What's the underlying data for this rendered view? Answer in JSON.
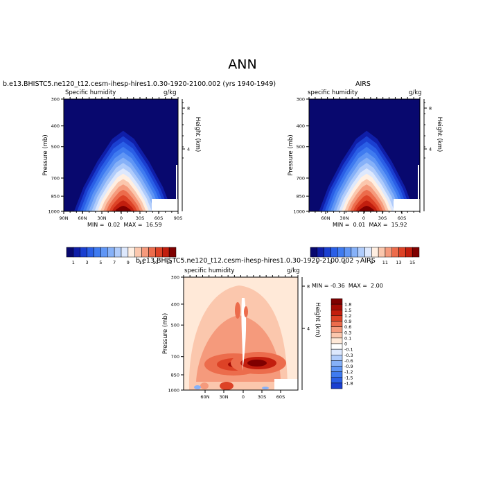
{
  "figure": {
    "title": "ANN"
  },
  "panels": [
    {
      "title": "b.e13.BHISTC5.ne120_t12.cesm-ihesp-hires1.0.30-1920-2100.002 (yrs 1940-1949)",
      "variable": "Specific humidity",
      "units": "g/kg",
      "minmax": "MIN =  0.02  MAX =  16.59"
    },
    {
      "title": "AIRS",
      "variable": "specific humidity",
      "units": "g/kg",
      "minmax": "MIN =  0.01  MAX =  15.92"
    },
    {
      "title": "b.e13.BHISTC5.ne120_t12.cesm-ihesp-hires1.0.30-1920-2100.002 - AIRS",
      "variable": "specific humidity",
      "units": "g/kg",
      "minmax": "MIN = -0.36  MAX =  2.00"
    }
  ],
  "colors": {
    "seq": [
      "#08086e",
      "#0f1ea8",
      "#1a3fd0",
      "#2a5fe6",
      "#3f7bf0",
      "#6096f5",
      "#86b1f8",
      "#b0ccfb",
      "#dde8fd",
      "#ffefe2",
      "#fbc7ad",
      "#f59a7c",
      "#ec6c4c",
      "#dd4226",
      "#c21e0e",
      "#7f0000"
    ],
    "div": [
      "#08086e",
      "#0f1ea8",
      "#1a3fd0",
      "#2a5fe6",
      "#3f7bf0",
      "#6096f5",
      "#86b1f8",
      "#b0ccfb",
      "#dde8fd",
      "#ffffff",
      "#ffe9d8",
      "#fbc7ad",
      "#f59a7c",
      "#ec6c4c",
      "#dd4226",
      "#c21e0e",
      "#a40a03",
      "#7f0000"
    ]
  },
  "chart_data": [
    {
      "type": "heatmap",
      "title": "b.e13.BHISTC5.ne120_t12.cesm-ihesp-hires1.0.30-1920-2100.002 (yrs 1940-1949)",
      "xlabel": "",
      "ylabel": "Pressure (mb)",
      "ylabel_right": "Height (km)",
      "x_ticks": [
        "90N",
        "60N",
        "30N",
        "0",
        "30S",
        "60S",
        "90S"
      ],
      "y_ticks": [
        300,
        400,
        500,
        700,
        850,
        1000
      ],
      "y_range": [
        300,
        1000
      ],
      "right_ticks": [
        "8",
        "4"
      ],
      "colorbar_labels": [
        "1",
        "3",
        "5",
        "7",
        "9",
        "11",
        "13",
        "15"
      ],
      "min": 0.02,
      "max": 16.59
    },
    {
      "type": "heatmap",
      "title": "AIRS",
      "xlabel": "",
      "ylabel": "Pressure (mb)",
      "ylabel_right": "Height (km)",
      "x_ticks": [
        "60N",
        "30N",
        "0",
        "30S",
        "60S"
      ],
      "y_ticks": [
        300,
        400,
        500,
        700,
        850,
        1000
      ],
      "y_range": [
        300,
        1000
      ],
      "right_ticks": [
        "8",
        "4"
      ],
      "colorbar_labels": [
        "1",
        "3",
        "5",
        "7",
        "9",
        "11",
        "13",
        "15"
      ],
      "min": 0.01,
      "max": 15.92
    },
    {
      "type": "heatmap",
      "title": "b.e13.BHISTC5.ne120_t12.cesm-ihesp-hires1.0.30-1920-2100.002 - AIRS",
      "xlabel": "",
      "ylabel": "Pressure (mb)",
      "ylabel_right": "Height (km)",
      "x_ticks": [
        "60N",
        "30N",
        "0",
        "30S",
        "60S"
      ],
      "y_ticks": [
        300,
        400,
        500,
        700,
        850,
        1000
      ],
      "y_range": [
        300,
        1000
      ],
      "right_ticks": [
        "8",
        "4"
      ],
      "colorbar_labels": [
        "1.8",
        "1.5",
        "1.2",
        "0.9",
        "0.6",
        "0.3",
        "0.1",
        "0",
        "-0.1",
        "-0.3",
        "-0.6",
        "-0.9",
        "-1.2",
        "-1.5",
        "-1.8"
      ],
      "min": -0.36,
      "max": 2.0
    }
  ]
}
